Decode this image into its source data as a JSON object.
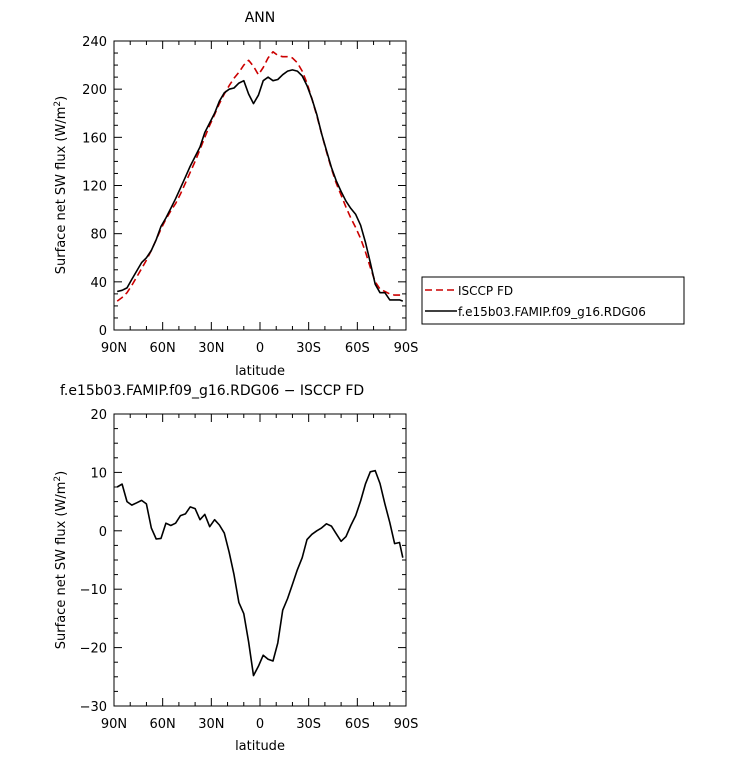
{
  "figure": {
    "background": "#ffffff"
  },
  "chart_data": [
    {
      "type": "line",
      "title": "ANN",
      "xlabel": "latitude",
      "ylabel": "Surface net SW flux (W/m²)",
      "xlim": [
        90,
        -90
      ],
      "ylim": [
        0,
        240
      ],
      "xticks": [
        90,
        60,
        30,
        0,
        -30,
        -60,
        -90
      ],
      "xtick_labels": [
        "90N",
        "60N",
        "30N",
        "0",
        "30S",
        "60S",
        "90S"
      ],
      "yticks": [
        0,
        40,
        80,
        120,
        160,
        200,
        240
      ],
      "ytick_labels": [
        "0",
        "40",
        "80",
        "120",
        "160",
        "200",
        "240"
      ],
      "grid": false,
      "legend_position": "right",
      "series": [
        {
          "name": "ISCCP FD",
          "color": "#cc0000",
          "dash": "dashed",
          "x": [
            88,
            85,
            82,
            79,
            76,
            73,
            70,
            67,
            64,
            61,
            58,
            55,
            52,
            49,
            46,
            43,
            40,
            37,
            34,
            31,
            28,
            25,
            22,
            19,
            16,
            13,
            10,
            7,
            4,
            1,
            -2,
            -5,
            -8,
            -11,
            -14,
            -17,
            -20,
            -23,
            -26,
            -29,
            -32,
            -35,
            -38,
            -41,
            -44,
            -47,
            -50,
            -53,
            -56,
            -59,
            -62,
            -65,
            -68,
            -71,
            -74,
            -77,
            -80,
            -83,
            -86,
            -88
          ],
          "y": [
            24,
            27,
            31,
            37,
            44,
            51,
            58,
            66,
            75,
            84,
            92,
            99,
            105,
            113,
            122,
            131,
            140,
            150,
            160,
            170,
            179,
            188,
            196,
            203,
            209,
            214,
            220,
            224,
            219,
            212,
            218,
            226,
            231,
            228,
            227,
            227,
            226,
            222,
            215,
            205,
            192,
            178,
            163,
            148,
            134,
            122,
            112,
            102,
            93,
            85,
            76,
            65,
            52,
            40,
            34,
            32,
            30,
            29,
            29,
            29
          ]
        },
        {
          "name": "f.e15b03.FAMIP.f09_g16.RDG06",
          "color": "#000000",
          "dash": "solid",
          "x": [
            88,
            85,
            82,
            79,
            76,
            73,
            70,
            67,
            64,
            61,
            58,
            55,
            52,
            49,
            46,
            43,
            40,
            37,
            34,
            31,
            28,
            25,
            22,
            19,
            16,
            13,
            10,
            7,
            4,
            1,
            -2,
            -5,
            -8,
            -11,
            -14,
            -17,
            -20,
            -23,
            -26,
            -29,
            -32,
            -35,
            -38,
            -41,
            -44,
            -47,
            -50,
            -53,
            -56,
            -59,
            -62,
            -65,
            -68,
            -71,
            -74,
            -77,
            -80,
            -83,
            -86,
            -88
          ],
          "y": [
            32,
            33,
            35,
            42,
            49,
            56,
            60,
            66,
            75,
            86,
            93,
            101,
            109,
            118,
            127,
            136,
            144,
            152,
            164,
            172,
            180,
            190,
            197,
            200,
            201,
            205,
            207,
            196,
            188,
            195,
            207,
            210,
            207,
            208,
            212,
            215,
            216,
            215,
            211,
            203,
            192,
            179,
            163,
            149,
            135,
            124,
            115,
            107,
            101,
            96,
            87,
            73,
            56,
            38,
            31,
            31,
            25,
            25,
            25,
            24
          ]
        }
      ]
    },
    {
      "type": "line",
      "title": "f.e15b03.FAMIP.f09_g16.RDG06 − ISCCP FD",
      "xlabel": "latitude",
      "ylabel": "Surface net SW flux (W/m²)",
      "xlim": [
        90,
        -90
      ],
      "ylim": [
        -30,
        20
      ],
      "xticks": [
        90,
        60,
        30,
        0,
        -30,
        -60,
        -90
      ],
      "xtick_labels": [
        "90N",
        "60N",
        "30N",
        "0",
        "30S",
        "60S",
        "90S"
      ],
      "yticks": [
        -30,
        -20,
        -10,
        0,
        10,
        20
      ],
      "ytick_labels": [
        "−30",
        "−20",
        "−10",
        "0",
        "10",
        "20"
      ],
      "grid": false,
      "series": [
        {
          "color": "#000000",
          "dash": "solid",
          "x": [
            88,
            85,
            82,
            79,
            76,
            73,
            70,
            67,
            64,
            61,
            58,
            55,
            52,
            49,
            46,
            43,
            40,
            37,
            34,
            31,
            28,
            25,
            22,
            19,
            16,
            13,
            10,
            7,
            4,
            1,
            -2,
            -5,
            -8,
            -11,
            -14,
            -17,
            -20,
            -23,
            -26,
            -29,
            -32,
            -35,
            -38,
            -41,
            -44,
            -47,
            -50,
            -53,
            -56,
            -59,
            -62,
            -65,
            -68,
            -71,
            -74,
            -77,
            -80,
            -83,
            -86,
            -88
          ],
          "y": [
            7.5,
            8,
            5,
            4.4,
            4.8,
            5.2,
            4.6,
            0.5,
            -1.4,
            -1.3,
            1.3,
            0.9,
            1.3,
            2.6,
            2.9,
            4.1,
            3.8,
            1.9,
            2.8,
            0.7,
            1.9,
            1,
            -0.4,
            -3.7,
            -7.5,
            -12.3,
            -14.2,
            -19,
            -24.8,
            -23.2,
            -21.3,
            -22,
            -22.3,
            -19.2,
            -13.6,
            -11.6,
            -9.2,
            -6.7,
            -4.6,
            -1.5,
            -0.6,
            0,
            0.5,
            1.2,
            0.8,
            -0.5,
            -1.8,
            -1,
            0.9,
            2.6,
            5.1,
            8,
            10.1,
            10.3,
            8.1,
            4.6,
            1.4,
            -2.2,
            -2,
            -4.6
          ]
        }
      ]
    }
  ]
}
